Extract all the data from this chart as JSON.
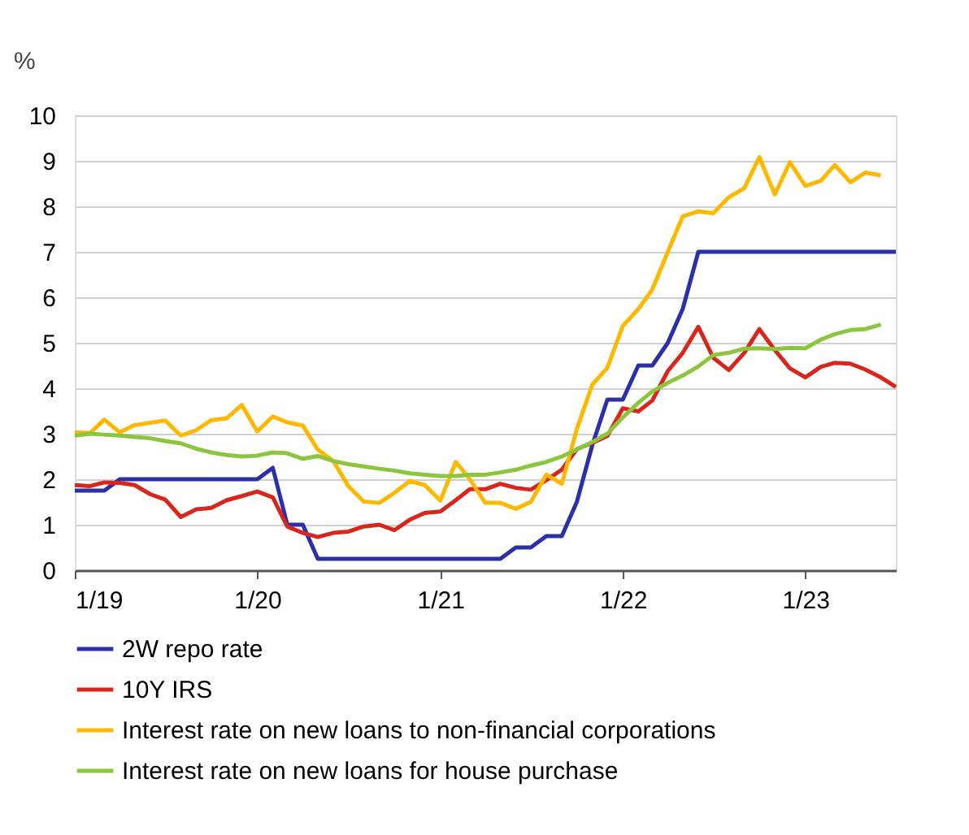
{
  "chart_data": {
    "type": "line",
    "ylabel": "%",
    "x": [
      "2019-01",
      "2019-02",
      "2019-03",
      "2019-04",
      "2019-05",
      "2019-06",
      "2019-07",
      "2019-08",
      "2019-09",
      "2019-10",
      "2019-11",
      "2019-12",
      "2020-01",
      "2020-02",
      "2020-03",
      "2020-04",
      "2020-05",
      "2020-06",
      "2020-07",
      "2020-08",
      "2020-09",
      "2020-10",
      "2020-11",
      "2020-12",
      "2021-01",
      "2021-02",
      "2021-03",
      "2021-04",
      "2021-05",
      "2021-06",
      "2021-07",
      "2021-08",
      "2021-09",
      "2021-10",
      "2021-11",
      "2021-12",
      "2022-01",
      "2022-02",
      "2022-03",
      "2022-04",
      "2022-05",
      "2022-06",
      "2022-07",
      "2022-08",
      "2022-09",
      "2022-10",
      "2022-11",
      "2022-12",
      "2023-01",
      "2023-02",
      "2023-03",
      "2023-04",
      "2023-05",
      "2023-06",
      "2023-07"
    ],
    "series": [
      {
        "name": "2W repo rate",
        "color": "#2b2fa8",
        "values": [
          1.75,
          1.75,
          1.75,
          2.0,
          2.0,
          2.0,
          2.0,
          2.0,
          2.0,
          2.0,
          2.0,
          2.0,
          2.0,
          2.25,
          1.0,
          1.0,
          0.25,
          0.25,
          0.25,
          0.25,
          0.25,
          0.25,
          0.25,
          0.25,
          0.25,
          0.25,
          0.25,
          0.25,
          0.25,
          0.5,
          0.5,
          0.75,
          0.75,
          1.5,
          2.75,
          3.75,
          3.75,
          4.5,
          4.5,
          5.0,
          5.75,
          7.0,
          7.0,
          7.0,
          7.0,
          7.0,
          7.0,
          7.0,
          7.0,
          7.0,
          7.0,
          7.0,
          7.0,
          7.0,
          7.0
        ]
      },
      {
        "name": "10Y IRS",
        "color": "#d9261c",
        "values": [
          1.87,
          1.85,
          1.93,
          1.92,
          1.87,
          1.67,
          1.55,
          1.17,
          1.34,
          1.37,
          1.54,
          1.63,
          1.73,
          1.6,
          0.96,
          0.82,
          0.73,
          0.82,
          0.85,
          0.96,
          1.0,
          0.88,
          1.11,
          1.26,
          1.29,
          1.54,
          1.78,
          1.78,
          1.9,
          1.81,
          1.77,
          1.98,
          2.21,
          2.66,
          2.8,
          2.95,
          3.56,
          3.49,
          3.73,
          4.38,
          4.78,
          5.35,
          4.67,
          4.4,
          4.78,
          5.3,
          4.84,
          4.44,
          4.24,
          4.47,
          4.56,
          4.54,
          4.41,
          4.24,
          4.03
        ]
      },
      {
        "name": "Interest rate on new loans to non-financial corporations",
        "color": "#ffb800",
        "values": [
          3.03,
          3.02,
          3.31,
          3.03,
          3.19,
          3.24,
          3.29,
          2.96,
          3.08,
          3.3,
          3.34,
          3.63,
          3.05,
          3.38,
          3.25,
          3.18,
          2.65,
          2.4,
          1.85,
          1.51,
          1.48,
          1.7,
          1.96,
          1.87,
          1.53,
          2.38,
          2.0,
          1.48,
          1.48,
          1.35,
          1.5,
          2.1,
          1.9,
          3.1,
          4.08,
          4.45,
          5.37,
          5.74,
          6.17,
          7.0,
          7.78,
          7.89,
          7.85,
          8.2,
          8.4,
          9.08,
          8.26,
          8.97,
          8.45,
          8.56,
          8.91,
          8.53,
          8.74,
          8.68,
          null
        ]
      },
      {
        "name": "Interest rate on new loans for house purchase",
        "color": "#8cc63f",
        "values": [
          2.96,
          3.0,
          2.98,
          2.96,
          2.93,
          2.9,
          2.84,
          2.79,
          2.67,
          2.59,
          2.53,
          2.5,
          2.52,
          2.59,
          2.57,
          2.45,
          2.51,
          2.4,
          2.33,
          2.28,
          2.23,
          2.19,
          2.13,
          2.1,
          2.07,
          2.07,
          2.1,
          2.1,
          2.15,
          2.21,
          2.3,
          2.38,
          2.5,
          2.65,
          2.82,
          3.0,
          3.36,
          3.68,
          3.93,
          4.12,
          4.28,
          4.48,
          4.73,
          4.78,
          4.87,
          4.88,
          4.86,
          4.89,
          4.88,
          5.07,
          5.19,
          5.28,
          5.3,
          5.4,
          null
        ]
      }
    ],
    "xlim": [
      "2019-01",
      "2023-07"
    ],
    "xticks": [
      {
        "value": "2019-01",
        "label": "1/19"
      },
      {
        "value": "2020-01",
        "label": "1/20"
      },
      {
        "value": "2021-01",
        "label": "1/21"
      },
      {
        "value": "2022-01",
        "label": "1/22"
      },
      {
        "value": "2023-01",
        "label": "1/23"
      }
    ],
    "ylim": [
      0,
      10
    ],
    "yticks": [
      0,
      1,
      2,
      3,
      4,
      5,
      6,
      7,
      8,
      9,
      10
    ],
    "grid": "y",
    "legend": "bottom",
    "line_style": "solid",
    "marker": "none"
  }
}
